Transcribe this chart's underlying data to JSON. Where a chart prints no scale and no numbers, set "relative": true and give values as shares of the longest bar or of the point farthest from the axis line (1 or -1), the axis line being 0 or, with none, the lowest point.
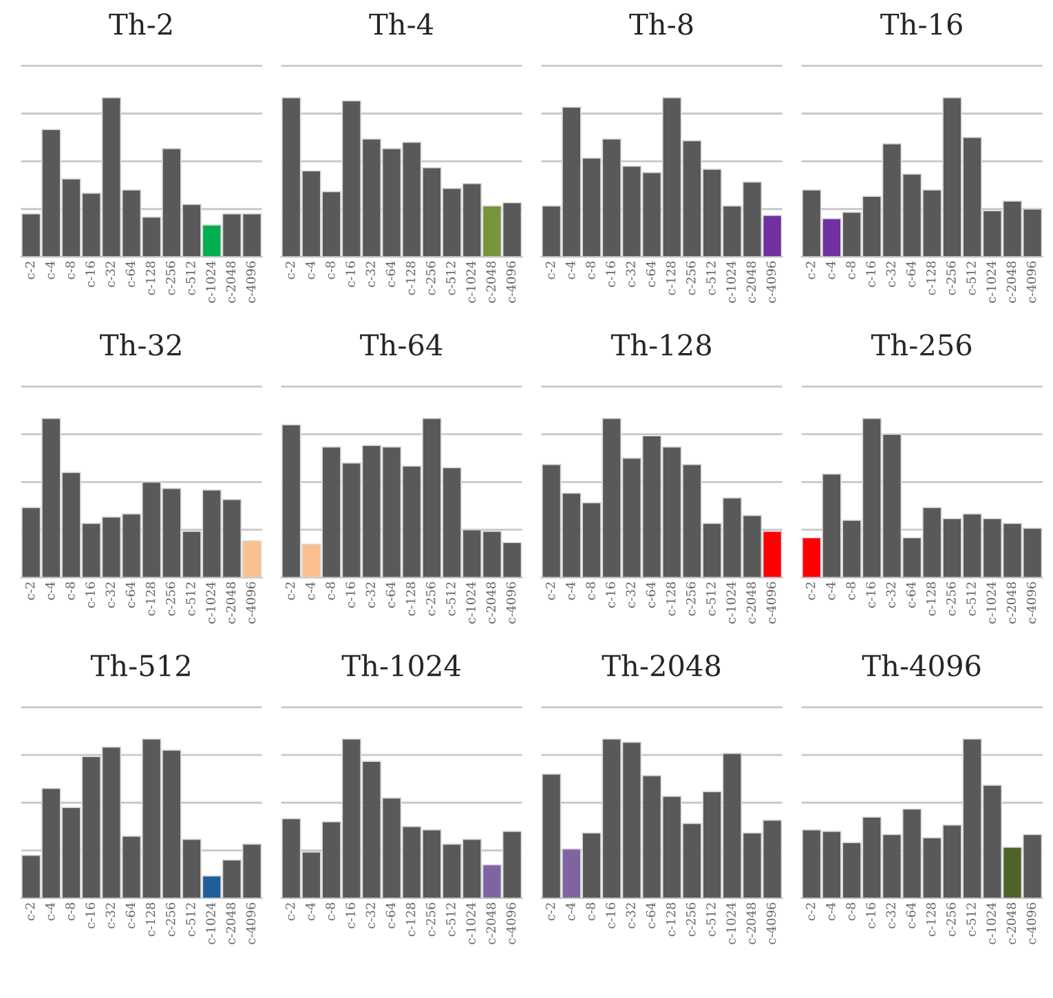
{
  "chart_data": [
    {
      "type": "bar",
      "title": "Th-2",
      "relative": true,
      "grid": "y",
      "tick_labels": "x",
      "categories": [
        "c-2",
        "c-4",
        "c-8",
        "c-16",
        "c-32",
        "c-64",
        "c-128",
        "c-256",
        "c-512",
        "c-1024",
        "c-2048",
        "c-4096"
      ],
      "values": [
        0.27,
        0.8,
        0.49,
        0.4,
        1,
        0.42,
        0.25,
        0.68,
        0.33,
        0.2,
        0.27,
        0.27
      ],
      "colors": [
        "#595959",
        "#595959",
        "#595959",
        "#595959",
        "#595959",
        "#595959",
        "#595959",
        "#595959",
        "#595959",
        "#00b050",
        "#595959",
        "#595959"
      ]
    },
    {
      "type": "bar",
      "title": "Th-4",
      "relative": true,
      "grid": "y",
      "tick_labels": "x",
      "categories": [
        "c-2",
        "c-4",
        "c-8",
        "c-16",
        "c-32",
        "c-64",
        "c-128",
        "c-256",
        "c-512",
        "c-1024",
        "c-2048",
        "c-4096"
      ],
      "values": [
        1,
        0.54,
        0.41,
        0.98,
        0.74,
        0.68,
        0.72,
        0.56,
        0.43,
        0.46,
        0.32,
        0.34
      ],
      "colors": [
        "#595959",
        "#595959",
        "#595959",
        "#595959",
        "#595959",
        "#595959",
        "#595959",
        "#595959",
        "#595959",
        "#595959",
        "#77933c",
        "#595959"
      ]
    },
    {
      "type": "bar",
      "title": "Th-8",
      "relative": true,
      "grid": "y",
      "tick_labels": "x",
      "categories": [
        "c-2",
        "c-4",
        "c-8",
        "c-16",
        "c-32",
        "c-64",
        "c-128",
        "c-256",
        "c-512",
        "c-1024",
        "c-2048",
        "c-4096"
      ],
      "values": [
        0.32,
        0.94,
        0.62,
        0.74,
        0.57,
        0.53,
        1,
        0.73,
        0.55,
        0.32,
        0.47,
        0.26
      ],
      "colors": [
        "#595959",
        "#595959",
        "#595959",
        "#595959",
        "#595959",
        "#595959",
        "#595959",
        "#595959",
        "#595959",
        "#595959",
        "#595959",
        "#7030a0"
      ]
    },
    {
      "type": "bar",
      "title": "Th-16",
      "relative": true,
      "grid": "y",
      "tick_labels": "x",
      "categories": [
        "c-2",
        "c-4",
        "c-8",
        "c-16",
        "c-32",
        "c-64",
        "c-128",
        "c-256",
        "c-512",
        "c-1024",
        "c-2048",
        "c-4096"
      ],
      "values": [
        0.42,
        0.24,
        0.28,
        0.38,
        0.71,
        0.52,
        0.42,
        1,
        0.75,
        0.29,
        0.35,
        0.3
      ],
      "colors": [
        "#595959",
        "#7030a0",
        "#595959",
        "#595959",
        "#595959",
        "#595959",
        "#595959",
        "#595959",
        "#595959",
        "#595959",
        "#595959",
        "#595959"
      ]
    },
    {
      "type": "bar",
      "title": "Th-32",
      "relative": true,
      "grid": "y",
      "tick_labels": "x",
      "categories": [
        "c-2",
        "c-4",
        "c-8",
        "c-16",
        "c-32",
        "c-64",
        "c-128",
        "c-256",
        "c-512",
        "c-1024",
        "c-2048",
        "c-4096"
      ],
      "values": [
        0.44,
        1,
        0.66,
        0.34,
        0.38,
        0.4,
        0.6,
        0.56,
        0.29,
        0.55,
        0.49,
        0.23
      ],
      "colors": [
        "#595959",
        "#595959",
        "#595959",
        "#595959",
        "#595959",
        "#595959",
        "#595959",
        "#595959",
        "#595959",
        "#595959",
        "#595959",
        "#fac090"
      ]
    },
    {
      "type": "bar",
      "title": "Th-64",
      "relative": true,
      "grid": "y",
      "tick_labels": "x",
      "categories": [
        "c-2",
        "c-4",
        "c-8",
        "c-16",
        "c-32",
        "c-64",
        "c-128",
        "c-256",
        "c-512",
        "c-1024",
        "c-2048",
        "c-4096"
      ],
      "values": [
        0.96,
        0.21,
        0.82,
        0.72,
        0.83,
        0.82,
        0.7,
        1,
        0.69,
        0.3,
        0.29,
        0.22
      ],
      "colors": [
        "#595959",
        "#fac090",
        "#595959",
        "#595959",
        "#595959",
        "#595959",
        "#595959",
        "#595959",
        "#595959",
        "#595959",
        "#595959",
        "#595959"
      ]
    },
    {
      "type": "bar",
      "title": "Th-128",
      "relative": true,
      "grid": "y",
      "tick_labels": "x",
      "categories": [
        "c-2",
        "c-4",
        "c-8",
        "c-16",
        "c-32",
        "c-64",
        "c-128",
        "c-256",
        "c-512",
        "c-1024",
        "c-2048",
        "c-4096"
      ],
      "values": [
        0.71,
        0.53,
        0.47,
        1,
        0.75,
        0.89,
        0.82,
        0.71,
        0.34,
        0.5,
        0.39,
        0.29
      ],
      "colors": [
        "#595959",
        "#595959",
        "#595959",
        "#595959",
        "#595959",
        "#595959",
        "#595959",
        "#595959",
        "#595959",
        "#595959",
        "#595959",
        "#ff0000"
      ]
    },
    {
      "type": "bar",
      "title": "Th-256",
      "relative": true,
      "grid": "y",
      "tick_labels": "x",
      "categories": [
        "c-2",
        "c-4",
        "c-8",
        "c-16",
        "c-32",
        "c-64",
        "c-128",
        "c-256",
        "c-512",
        "c-1024",
        "c-2048",
        "c-4096"
      ],
      "values": [
        0.25,
        0.65,
        0.36,
        1,
        0.9,
        0.25,
        0.44,
        0.37,
        0.4,
        0.37,
        0.34,
        0.31
      ],
      "colors": [
        "#ff0000",
        "#595959",
        "#595959",
        "#595959",
        "#595959",
        "#595959",
        "#595959",
        "#595959",
        "#595959",
        "#595959",
        "#595959",
        "#595959"
      ]
    },
    {
      "type": "bar",
      "title": "Th-512",
      "relative": true,
      "grid": "y",
      "tick_labels": "x",
      "categories": [
        "c-2",
        "c-4",
        "c-8",
        "c-16",
        "c-32",
        "c-64",
        "c-128",
        "c-256",
        "c-512",
        "c-1024",
        "c-2048",
        "c-4096"
      ],
      "values": [
        0.27,
        0.69,
        0.57,
        0.89,
        0.95,
        0.39,
        1,
        0.93,
        0.37,
        0.14,
        0.24,
        0.34
      ],
      "colors": [
        "#595959",
        "#595959",
        "#595959",
        "#595959",
        "#595959",
        "#595959",
        "#595959",
        "#595959",
        "#595959",
        "#1f5e99",
        "#595959",
        "#595959"
      ]
    },
    {
      "type": "bar",
      "title": "Th-1024",
      "relative": true,
      "grid": "y",
      "tick_labels": "x",
      "categories": [
        "c-2",
        "c-4",
        "c-8",
        "c-16",
        "c-32",
        "c-64",
        "c-128",
        "c-256",
        "c-512",
        "c-1024",
        "c-2048",
        "c-4096"
      ],
      "values": [
        0.5,
        0.29,
        0.48,
        1,
        0.86,
        0.63,
        0.45,
        0.43,
        0.34,
        0.37,
        0.21,
        0.42
      ],
      "colors": [
        "#595959",
        "#595959",
        "#595959",
        "#595959",
        "#595959",
        "#595959",
        "#595959",
        "#595959",
        "#595959",
        "#595959",
        "#8064a2",
        "#595959"
      ]
    },
    {
      "type": "bar",
      "title": "Th-2048",
      "relative": true,
      "grid": "y",
      "tick_labels": "x",
      "categories": [
        "c-2",
        "c-4",
        "c-8",
        "c-16",
        "c-32",
        "c-64",
        "c-128",
        "c-256",
        "c-512",
        "c-1024",
        "c-2048",
        "c-4096"
      ],
      "values": [
        0.78,
        0.31,
        0.41,
        1,
        0.98,
        0.77,
        0.64,
        0.47,
        0.67,
        0.91,
        0.41,
        0.49
      ],
      "colors": [
        "#595959",
        "#8064a2",
        "#595959",
        "#595959",
        "#595959",
        "#595959",
        "#595959",
        "#595959",
        "#595959",
        "#595959",
        "#595959",
        "#595959"
      ]
    },
    {
      "type": "bar",
      "title": "Th-4096",
      "relative": true,
      "grid": "y",
      "tick_labels": "x",
      "categories": [
        "c-2",
        "c-4",
        "c-8",
        "c-16",
        "c-32",
        "c-64",
        "c-128",
        "c-256",
        "c-512",
        "c-1024",
        "c-2048",
        "c-4096"
      ],
      "values": [
        0.43,
        0.42,
        0.35,
        0.51,
        0.4,
        0.56,
        0.38,
        0.46,
        1,
        0.71,
        0.32,
        0.4
      ],
      "colors": [
        "#595959",
        "#595959",
        "#595959",
        "#595959",
        "#595959",
        "#595959",
        "#595959",
        "#595959",
        "#595959",
        "#595959",
        "#4f6228",
        "#595959"
      ]
    }
  ]
}
